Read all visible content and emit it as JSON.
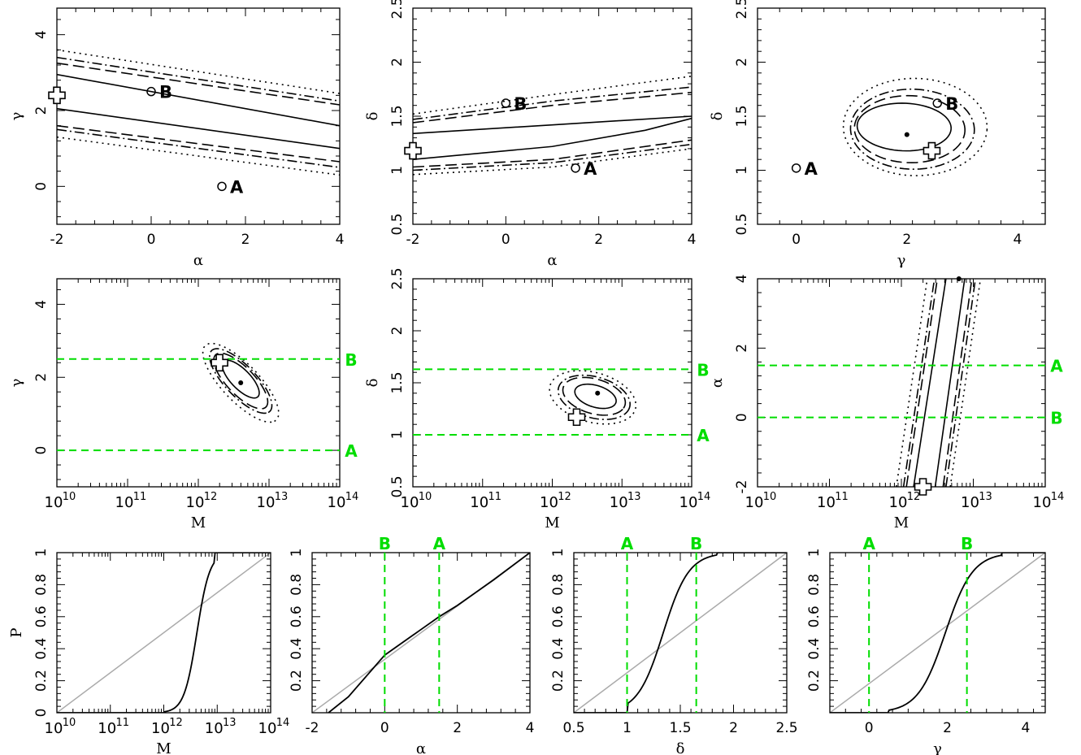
{
  "colors": {
    "frame": "#000000",
    "contour": "#000000",
    "marker_lines": "#00dd00",
    "diagonal": "#aaaaaa"
  },
  "chart_data": [
    {
      "id": "p1",
      "type": "scatter",
      "row": 1,
      "xlabel": "α",
      "ylabel": "γ",
      "xlim": [
        -2,
        4
      ],
      "ylim": [
        -1,
        4.7
      ],
      "xticks": [
        -2,
        0,
        2,
        4
      ],
      "yticks": [
        0,
        2,
        4
      ],
      "contour_bands": [
        {
          "style": "solid",
          "upper": [
            [
              -2,
              2.95
            ],
            [
              4,
              1.6
            ]
          ],
          "lower": [
            [
              -2,
              2.05
            ],
            [
              4,
              1.0
            ]
          ]
        },
        {
          "style": "dashed",
          "upper": [
            [
              -2,
              3.25
            ],
            [
              4,
              2.15
            ]
          ],
          "lower": [
            [
              -2,
              1.6
            ],
            [
              4,
              0.65
            ]
          ]
        },
        {
          "style": "dashdot",
          "upper": [
            [
              -2,
              3.4
            ],
            [
              4,
              2.25
            ]
          ],
          "lower": [
            [
              -2,
              1.5
            ],
            [
              4,
              0.5
            ]
          ]
        },
        {
          "style": "dotted",
          "upper": [
            [
              -2,
              3.6
            ],
            [
              4,
              2.45
            ]
          ],
          "lower": [
            [
              -2,
              1.3
            ],
            [
              4,
              0.3
            ]
          ]
        }
      ],
      "points": [
        {
          "label": "A",
          "x": 1.5,
          "y": 0.0,
          "marker": "circle"
        },
        {
          "label": "B",
          "x": 0.0,
          "y": 2.5,
          "marker": "circle"
        },
        {
          "label": "",
          "x": -2.0,
          "y": 2.4,
          "marker": "cross"
        }
      ]
    },
    {
      "id": "p2",
      "type": "scatter",
      "row": 1,
      "xlabel": "α",
      "ylabel": "δ",
      "xlim": [
        -2,
        4
      ],
      "ylim": [
        0.5,
        2.5
      ],
      "xticks": [
        -2,
        0,
        2,
        4
      ],
      "yticks": [
        0.5,
        1,
        1.5,
        2,
        2.5
      ],
      "contour_bands": [
        {
          "style": "solid",
          "upper": [
            [
              -2,
              1.34
            ],
            [
              1,
              1.42
            ],
            [
              4,
              1.5
            ]
          ],
          "lower": [
            [
              -2,
              1.1
            ],
            [
              1,
              1.22
            ],
            [
              3,
              1.37
            ],
            [
              4,
              1.48
            ]
          ]
        },
        {
          "style": "dashed",
          "upper": [
            [
              -2,
              1.44
            ],
            [
              1,
              1.6
            ],
            [
              4,
              1.72
            ]
          ],
          "lower": [
            [
              -2,
              1.03
            ],
            [
              1,
              1.1
            ],
            [
              4,
              1.28
            ]
          ]
        },
        {
          "style": "dashdot",
          "upper": [
            [
              -2,
              1.47
            ],
            [
              1,
              1.64
            ],
            [
              4,
              1.77
            ]
          ],
          "lower": [
            [
              -2,
              1.0
            ],
            [
              1,
              1.07
            ],
            [
              4,
              1.24
            ]
          ]
        },
        {
          "style": "dotted",
          "upper": [
            [
              -2,
              1.52
            ],
            [
              1,
              1.7
            ],
            [
              4,
              1.87
            ]
          ],
          "lower": [
            [
              -2,
              0.96
            ],
            [
              1,
              1.03
            ],
            [
              4,
              1.2
            ]
          ]
        }
      ],
      "points": [
        {
          "label": "A",
          "x": 1.5,
          "y": 1.02,
          "marker": "circle"
        },
        {
          "label": "B",
          "x": 0.0,
          "y": 1.62,
          "marker": "circle"
        },
        {
          "label": "",
          "x": -2.0,
          "y": 1.18,
          "marker": "cross"
        }
      ]
    },
    {
      "id": "p3",
      "type": "scatter",
      "row": 1,
      "xlabel": "γ",
      "ylabel": "δ",
      "xlim": [
        -0.7,
        4.5
      ],
      "ylim": [
        0.5,
        2.5
      ],
      "xticks": [
        0,
        2,
        4
      ],
      "yticks": [
        0.5,
        1,
        1.5,
        2,
        2.5
      ],
      "ellipses": [
        {
          "style": "solid",
          "cx": 1.95,
          "cy": 1.4,
          "rx": 0.85,
          "ry": 0.22,
          "rot": -0.06
        },
        {
          "style": "dashed",
          "cx": 2.05,
          "cy": 1.38,
          "rx": 1.0,
          "ry": 0.31,
          "rot": -0.06
        },
        {
          "style": "dashdot",
          "cx": 2.1,
          "cy": 1.38,
          "rx": 1.12,
          "ry": 0.37,
          "rot": -0.06
        },
        {
          "style": "dotted",
          "cx": 2.15,
          "cy": 1.4,
          "rx": 1.3,
          "ry": 0.45,
          "rot": -0.06
        }
      ],
      "points": [
        {
          "label": "",
          "x": 2.0,
          "y": 1.33,
          "marker": "dot"
        },
        {
          "label": "A",
          "x": 0.0,
          "y": 1.02,
          "marker": "circle"
        },
        {
          "label": "B",
          "x": 2.55,
          "y": 1.62,
          "marker": "circle"
        },
        {
          "label": "",
          "x": 2.45,
          "y": 1.18,
          "marker": "cross"
        }
      ]
    },
    {
      "id": "p4",
      "type": "scatter",
      "row": 2,
      "xscale": "log",
      "xlabel": "M",
      "ylabel": "γ",
      "xlim": [
        10,
        14
      ],
      "ylim": [
        -1,
        4.7
      ],
      "xtick_labels": [
        "10",
        "10",
        "10",
        "10",
        "10"
      ],
      "xtick_exps": [
        "10",
        "11",
        "12",
        "13",
        "14"
      ],
      "yticks": [
        0,
        2,
        4
      ],
      "ellipses": [
        {
          "style": "solid",
          "cx": 12.6,
          "cy": 1.95,
          "rx": 0.42,
          "ry": 0.22,
          "rot": -1.0
        },
        {
          "style": "dashed",
          "cx": 12.6,
          "cy": 1.9,
          "rx": 0.62,
          "ry": 0.31,
          "rot": -1.0
        },
        {
          "style": "dashdot",
          "cx": 12.6,
          "cy": 1.9,
          "rx": 0.72,
          "ry": 0.35,
          "rot": -1.0
        },
        {
          "style": "dotted",
          "cx": 12.6,
          "cy": 1.85,
          "rx": 0.88,
          "ry": 0.42,
          "rot": -1.0
        }
      ],
      "hlines": [
        {
          "label": "B",
          "value": 2.5
        },
        {
          "label": "A",
          "value": 0.0
        }
      ],
      "points": [
        {
          "label": "",
          "x": 12.6,
          "y": 1.85,
          "marker": "dot"
        },
        {
          "label": "",
          "x": 12.3,
          "y": 2.4,
          "marker": "cross"
        }
      ]
    },
    {
      "id": "p5",
      "type": "scatter",
      "row": 2,
      "xscale": "log",
      "xlabel": "M",
      "ylabel": "δ",
      "xlim": [
        10,
        14
      ],
      "ylim": [
        0.5,
        2.5
      ],
      "xtick_labels": [
        "10",
        "10",
        "10",
        "10",
        "10"
      ],
      "xtick_exps": [
        "10",
        "11",
        "12",
        "13",
        "14"
      ],
      "yticks": [
        0.5,
        1,
        1.5,
        2,
        2.5
      ],
      "ellipses": [
        {
          "style": "solid",
          "cx": 12.62,
          "cy": 1.37,
          "rx": 0.32,
          "ry": 0.1,
          "rot": -0.5
        },
        {
          "style": "dashed",
          "cx": 12.6,
          "cy": 1.37,
          "rx": 0.48,
          "ry": 0.16,
          "rot": -0.5
        },
        {
          "style": "dashdot",
          "cx": 12.6,
          "cy": 1.36,
          "rx": 0.55,
          "ry": 0.19,
          "rot": -0.5
        },
        {
          "style": "dotted",
          "cx": 12.58,
          "cy": 1.36,
          "rx": 0.66,
          "ry": 0.23,
          "rot": -0.5
        }
      ],
      "hlines": [
        {
          "label": "B",
          "value": 1.63
        },
        {
          "label": "A",
          "value": 1.0
        }
      ],
      "points": [
        {
          "label": "",
          "x": 12.65,
          "y": 1.4,
          "marker": "dot"
        },
        {
          "label": "",
          "x": 12.35,
          "y": 1.17,
          "marker": "cross"
        }
      ]
    },
    {
      "id": "p6",
      "type": "scatter",
      "row": 2,
      "xscale": "log",
      "xlabel": "M",
      "ylabel": "α",
      "xlim": [
        10,
        14
      ],
      "ylim": [
        -2,
        4
      ],
      "xtick_labels": [
        "10",
        "10",
        "10",
        "10",
        "10"
      ],
      "xtick_exps": [
        "10",
        "11",
        "12",
        "13",
        "14"
      ],
      "yticks": [
        -2,
        0,
        2,
        4
      ],
      "contour_bands": [
        {
          "style": "solid",
          "upper": [
            [
              12.47,
              -2
            ],
            [
              12.88,
              4
            ]
          ],
          "lower": [
            [
              12.17,
              -2
            ],
            [
              12.62,
              4
            ]
          ]
        },
        {
          "style": "dashed",
          "upper": [
            [
              12.58,
              -2
            ],
            [
              12.98,
              4
            ]
          ],
          "lower": [
            [
              12.07,
              -2
            ],
            [
              12.5,
              4
            ]
          ]
        },
        {
          "style": "dashdot",
          "upper": [
            [
              12.62,
              -2
            ],
            [
              13.03,
              4
            ]
          ],
          "lower": [
            [
              12.03,
              -2
            ],
            [
              12.46,
              4
            ]
          ]
        },
        {
          "style": "dotted",
          "upper": [
            [
              12.68,
              -2
            ],
            [
              13.1,
              4
            ]
          ],
          "lower": [
            [
              11.93,
              -2
            ],
            [
              12.36,
              4
            ]
          ]
        }
      ],
      "hlines": [
        {
          "label": "A",
          "value": 1.5
        },
        {
          "label": "B",
          "value": 0.0
        }
      ],
      "points": [
        {
          "label": "",
          "x": 12.8,
          "y": 4.0,
          "marker": "dot"
        },
        {
          "label": "",
          "x": 12.3,
          "y": -2.0,
          "marker": "cross"
        }
      ]
    },
    {
      "id": "p7",
      "type": "line",
      "row": 3,
      "xscale": "log",
      "xlabel": "M",
      "ylabel": "P",
      "xlim": [
        10,
        14
      ],
      "ylim": [
        0,
        1
      ],
      "xtick_labels": [
        "10",
        "10",
        "10",
        "10",
        "10"
      ],
      "xtick_exps": [
        "10",
        "11",
        "12",
        "13",
        "14"
      ],
      "yticks": [
        0,
        0.2,
        0.4,
        0.6,
        0.8,
        1
      ],
      "cdf": {
        "kind": "sigmoid",
        "center": 12.62,
        "width": 0.12,
        "floor": 12.0,
        "ceil": 12.95
      },
      "vlines": []
    },
    {
      "id": "p8",
      "type": "line",
      "row": 3,
      "xlabel": "α",
      "ylabel": "",
      "xlim": [
        -2,
        4
      ],
      "ylim": [
        0,
        1
      ],
      "xticks": [
        -2,
        0,
        2,
        4
      ],
      "yticks": [
        0.2,
        0.4,
        0.6,
        0.8,
        1
      ],
      "cdf": {
        "kind": "curve",
        "points": [
          [
            -1.55,
            0.0
          ],
          [
            -1,
            0.1
          ],
          [
            0,
            0.36
          ],
          [
            1,
            0.52
          ],
          [
            1.5,
            0.6
          ],
          [
            2,
            0.67
          ],
          [
            3,
            0.83
          ],
          [
            4,
            1.0
          ]
        ]
      },
      "vlines": [
        {
          "label": "B",
          "value": 0.0
        },
        {
          "label": "A",
          "value": 1.5
        }
      ]
    },
    {
      "id": "p9",
      "type": "line",
      "row": 3,
      "xlabel": "δ",
      "ylabel": "",
      "xlim": [
        0.5,
        2.5
      ],
      "ylim": [
        0,
        1
      ],
      "xticks": [
        0.5,
        1,
        1.5,
        2,
        2.5
      ],
      "yticks": [
        0.2,
        0.4,
        0.6,
        0.8,
        1
      ],
      "cdf": {
        "kind": "sigmoid",
        "center": 1.34,
        "width": 0.12,
        "floor": 1.0,
        "ceil": 1.85
      },
      "vlines": [
        {
          "label": "A",
          "value": 1.0
        },
        {
          "label": "B",
          "value": 1.65
        }
      ]
    },
    {
      "id": "p10",
      "type": "line",
      "row": 3,
      "xlabel": "γ",
      "ylabel": "",
      "xlim": [
        -1,
        4.5
      ],
      "ylim": [
        0,
        1
      ],
      "xticks": [
        0,
        2,
        4
      ],
      "yticks": [
        0.2,
        0.4,
        0.6,
        0.8,
        1
      ],
      "cdf": {
        "kind": "sigmoid",
        "center": 1.95,
        "width": 0.35,
        "floor": 0.5,
        "ceil": 3.4
      },
      "vlines": [
        {
          "label": "A",
          "value": 0.0
        },
        {
          "label": "B",
          "value": 2.5
        }
      ]
    }
  ]
}
